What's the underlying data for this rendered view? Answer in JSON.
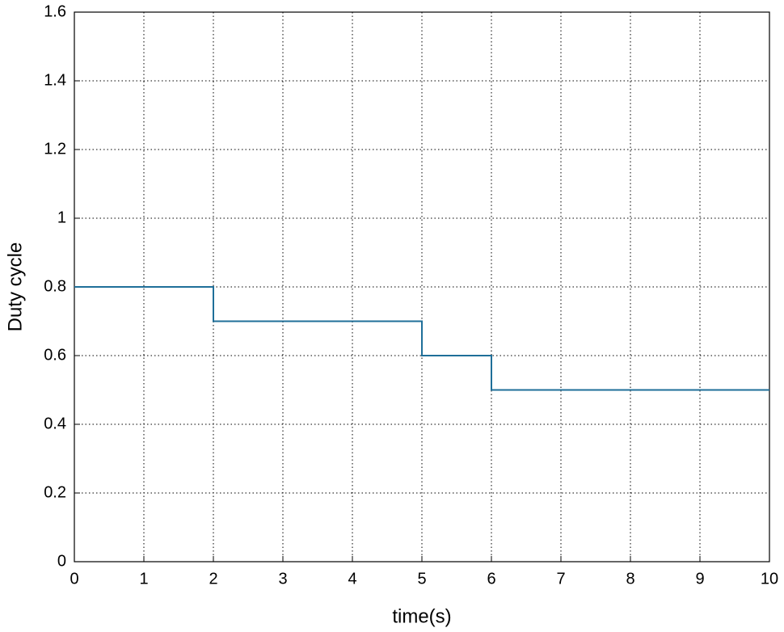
{
  "chart_data": {
    "type": "line",
    "x_label": "time(s)",
    "y_label": "Duty cycle",
    "x": [
      0,
      2,
      2,
      5,
      5,
      6,
      6,
      10
    ],
    "series": [
      {
        "color": "#1f6f99",
        "values": [
          0.8,
          0.8,
          0.7,
          0.7,
          0.6,
          0.6,
          0.5,
          0.5
        ]
      }
    ],
    "xlim": [
      0,
      10
    ],
    "xticks": [
      0,
      1,
      2,
      3,
      4,
      5,
      6,
      7,
      8,
      9,
      10
    ],
    "ylim": [
      0,
      1.6
    ],
    "yticks": [
      0,
      0.2,
      0.4,
      0.6,
      0.8,
      1,
      1.2,
      1.4,
      1.6
    ],
    "grid": true
  }
}
